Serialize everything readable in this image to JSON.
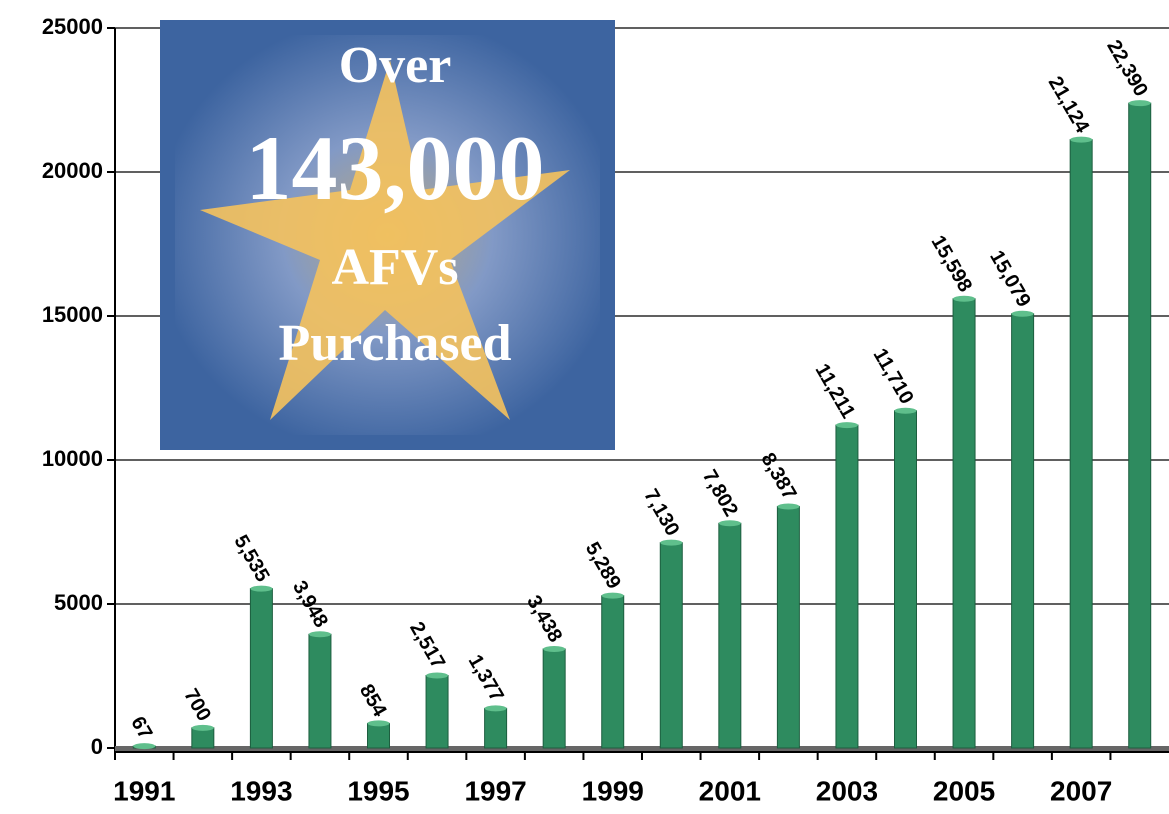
{
  "chart_data": {
    "type": "bar",
    "categories": [
      "1991",
      null,
      "1993",
      null,
      "1995",
      null,
      "1997",
      null,
      "1999",
      null,
      "2001",
      null,
      "2003",
      null,
      "2005",
      null,
      "2007",
      null
    ],
    "values": [
      67,
      700,
      5535,
      3948,
      854,
      2517,
      1377,
      3438,
      5289,
      7130,
      7802,
      8387,
      11211,
      11710,
      15598,
      15079,
      21124,
      22390
    ],
    "value_labels": [
      "67",
      "700",
      "5,535",
      "3,948",
      "854",
      "2,517",
      "1,377",
      "3,438",
      "5,289",
      "7,130",
      "7,802",
      "8,387",
      "11,211",
      "11,710",
      "15,598",
      "15,079",
      "21,124",
      "22,390"
    ],
    "color": "#2e8b5f",
    "ylim": [
      0,
      25000
    ],
    "yticks": [
      0,
      5000,
      10000,
      15000,
      20000,
      25000
    ],
    "grid": true,
    "annotations": [
      "Over",
      "143,000",
      "AFVs",
      "Purchased"
    ]
  }
}
